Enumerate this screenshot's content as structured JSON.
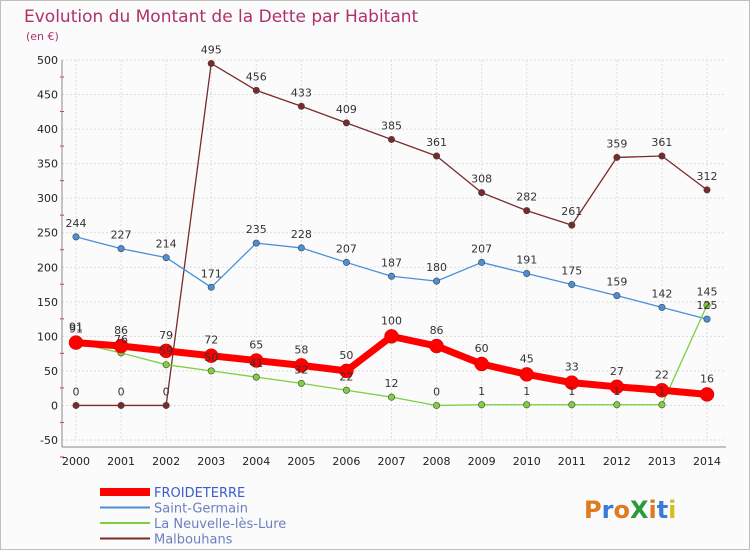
{
  "chart_data": {
    "type": "line",
    "title": "Evolution du Montant de la Dette par Habitant",
    "subtitle": "(en €)",
    "x": [
      "2000",
      "2001",
      "2002",
      "2003",
      "2004",
      "2005",
      "2006",
      "2007",
      "2008",
      "2009",
      "2010",
      "2011",
      "2012",
      "2013",
      "2014"
    ],
    "ylim": [
      -50,
      500
    ],
    "yticks": [
      -50,
      0,
      50,
      100,
      150,
      200,
      250,
      300,
      350,
      400,
      450,
      500
    ],
    "grid": true,
    "legend_position": "bottom-left",
    "series": [
      {
        "name": "FROIDETERRE",
        "color": "#ff0000",
        "values": [
          91,
          86,
          79,
          72,
          65,
          58,
          50,
          100,
          86,
          60,
          45,
          33,
          27,
          22,
          16
        ]
      },
      {
        "name": "Saint-Germain",
        "color": "#4a90d9",
        "values": [
          244,
          227,
          214,
          171,
          235,
          228,
          207,
          187,
          180,
          207,
          191,
          175,
          159,
          142,
          125
        ]
      },
      {
        "name": "La Neuvelle-lès-Lure",
        "color": "#7fcf3f",
        "values": [
          91,
          76,
          59,
          50,
          41,
          32,
          22,
          12,
          0,
          1,
          1,
          1,
          1,
          1,
          145
        ]
      },
      {
        "name": "Malbouhans",
        "color": "#7a2a2a",
        "values": [
          0,
          0,
          0,
          495,
          456,
          433,
          409,
          385,
          361,
          308,
          282,
          261,
          359,
          361,
          312
        ]
      }
    ]
  },
  "brand": {
    "text": "ProXiti"
  }
}
